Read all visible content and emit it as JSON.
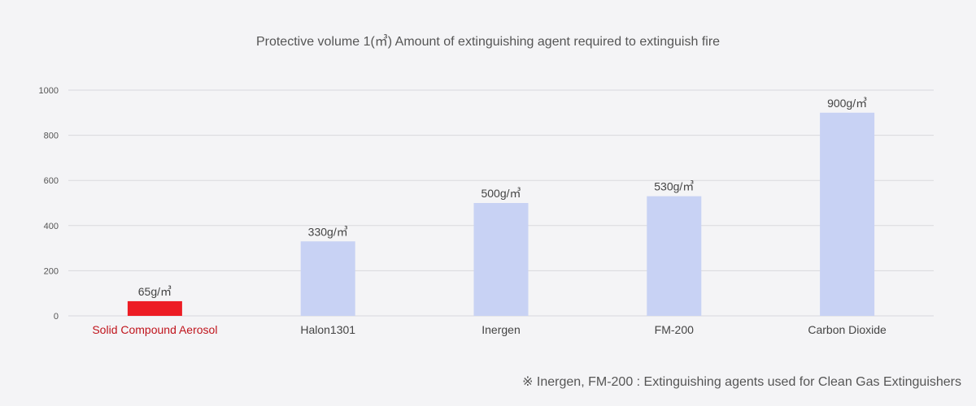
{
  "chart_data": {
    "type": "bar",
    "title": "Protective volume 1(㎥) Amount of extinguishing agent required to extinguish fire",
    "categories": [
      "Solid Compound Aerosol",
      "Halon1301",
      "Inergen",
      "FM-200",
      "Carbon Dioxide"
    ],
    "values": [
      65,
      330,
      500,
      530,
      900
    ],
    "data_labels": [
      "65g/㎥",
      "330g/㎥",
      "500g/㎥",
      "530g/㎥",
      "900g/㎥"
    ],
    "yticks": [
      "0",
      "200",
      "400",
      "600",
      "800",
      "1000"
    ],
    "ylim": [
      0,
      1000
    ],
    "grid": true,
    "colors": {
      "highlight": "#ed1c24",
      "bar": "#c8d2f4",
      "highlight_label": "#c0141c",
      "grid": "#d9d9dd"
    }
  },
  "footnote": "※ Inergen, FM-200 : Extinguishing agents used for Clean Gas Extinguishers"
}
